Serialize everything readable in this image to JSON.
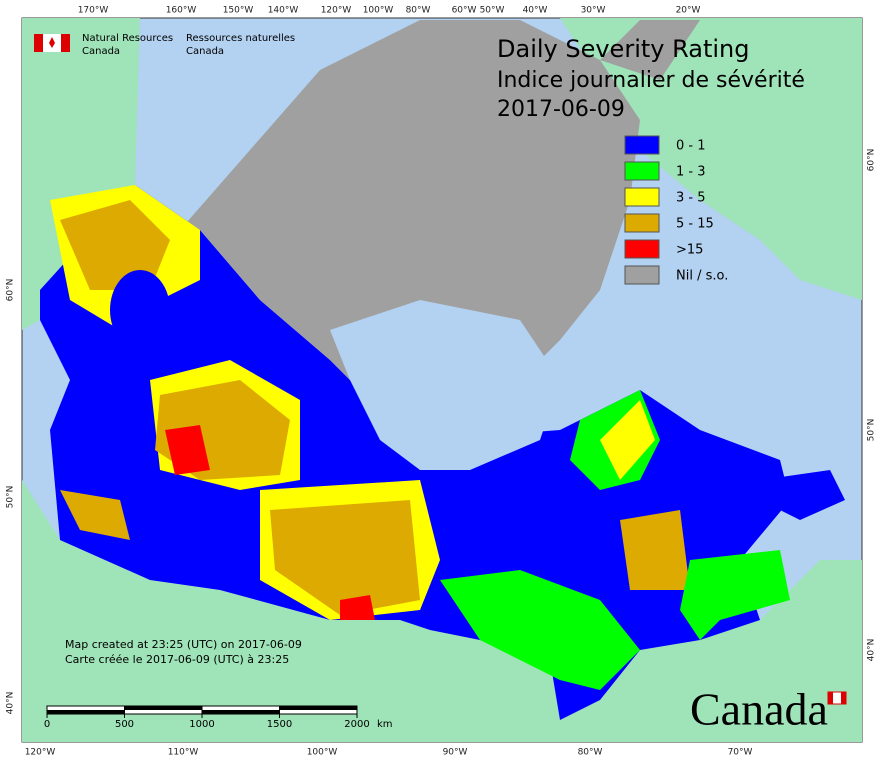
{
  "header": {
    "org_en": [
      "Natural Resources",
      "Canada"
    ],
    "org_fr": [
      "Ressources naturelles",
      "Canada"
    ]
  },
  "title": {
    "en": "Daily Severity Rating",
    "fr": "Indice journalier de sévérité",
    "date": "2017-06-09"
  },
  "legend": [
    {
      "label": "0 - 1",
      "color": "#0000ff"
    },
    {
      "label": "1 - 3",
      "color": "#00ff00"
    },
    {
      "label": "3 - 5",
      "color": "#ffff00"
    },
    {
      "label": "5 - 15",
      "color": "#dcaa00"
    },
    {
      "label": ">15",
      "color": "#ff0000"
    },
    {
      "label": "Nil / s.o.",
      "color": "#a0a0a0"
    }
  ],
  "graticule": {
    "top": [
      "170°W",
      "160°W",
      "150°W",
      "140°W",
      "120°W",
      "100°W",
      "80°W",
      "60°W",
      "50°W",
      "40°W",
      "30°W",
      "20°W"
    ],
    "bottom": [
      "120°W",
      "110°W",
      "100°W",
      "90°W",
      "80°W",
      "70°W"
    ],
    "left": [
      "60°N",
      "50°N",
      "40°N"
    ],
    "right": [
      "60°N",
      "50°N",
      "40°N"
    ]
  },
  "notes": [
    "Map created at 23:25 (UTC) on 2017-06-09",
    "Carte créée le 2017-06-09 (UTC) à 23:25"
  ],
  "scale_bar": {
    "ticks": [
      0,
      500,
      1000,
      1500,
      2000
    ],
    "unit": "km"
  },
  "wordmark": "Canada"
}
